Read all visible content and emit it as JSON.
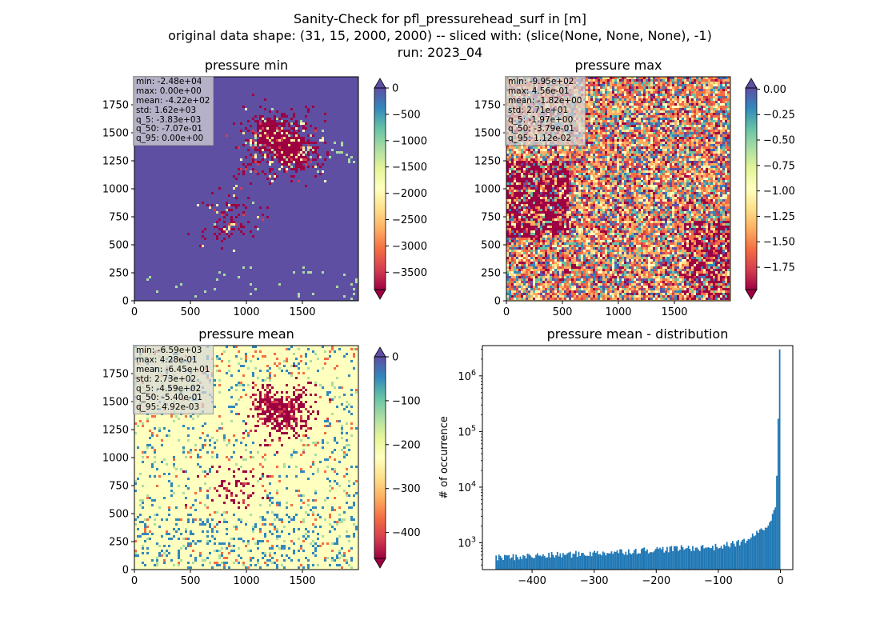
{
  "suptitle": {
    "line1": "Sanity-Check for pfl_pressurehead_surf in [m]",
    "line2": "original data shape: (31, 15, 2000, 2000) -- sliced with: (slice(None, None, None), -1)",
    "line3": "run: 2023_04"
  },
  "colors": {
    "spectral": [
      "#9e0142",
      "#d53e4f",
      "#f46d43",
      "#fdae61",
      "#fee08b",
      "#ffffbf",
      "#e6f598",
      "#abdda4",
      "#66c2a5",
      "#3288bd",
      "#5e4fa2"
    ],
    "hist_bar": "#1f77b4"
  },
  "panels": {
    "pmin": {
      "title": "pressure min",
      "stats": [
        "min: -2.48e+04",
        "max: 0.00e+00",
        "mean: -4.22e+02",
        "std: 1.62e+03",
        "q_5: -3.83e+03",
        "q_50: -7.07e-01",
        "q_95: 0.00e+00"
      ]
    },
    "pmax": {
      "title": "pressure max",
      "stats": [
        "min: -9.95e+02",
        "max: 4.56e-01",
        "mean: -1.82e+00",
        "std: 2.71e+01",
        "q_5: -1.97e+00",
        "q_50: -3.79e-01",
        "q_95: 1.12e-02"
      ]
    },
    "pmean": {
      "title": "pressure mean",
      "stats": [
        "min: -6.59e+03",
        "max: 4.28e-01",
        "mean: -6.45e+01",
        "std: 2.73e+02",
        "q_5: -4.59e+02",
        "q_50: -5.40e-01",
        "q_95: 4.92e-03"
      ]
    },
    "hist": {
      "title": "pressure mean - distribution"
    }
  },
  "chart_data": [
    {
      "type": "heatmap",
      "title": "pressure min",
      "xlim": [
        0,
        2000
      ],
      "ylim": [
        0,
        2000
      ],
      "x_ticks": [
        0,
        500,
        1000,
        1500
      ],
      "y_ticks": [
        0,
        250,
        500,
        750,
        1000,
        1250,
        1500,
        1750
      ],
      "colorbar": {
        "cmap": "Spectral",
        "range": [
          -3830,
          0
        ],
        "ticks": [
          0,
          -500,
          -1000,
          -1500,
          -2000,
          -2500,
          -3000,
          -3500
        ],
        "extend": "both"
      }
    },
    {
      "type": "heatmap",
      "title": "pressure max",
      "xlim": [
        0,
        2000
      ],
      "ylim": [
        0,
        2000
      ],
      "x_ticks": [
        0,
        500,
        1000,
        1500
      ],
      "y_ticks": [
        0,
        250,
        500,
        750,
        1000,
        1250,
        1500,
        1750
      ],
      "colorbar": {
        "cmap": "Spectral",
        "range": [
          -1.97,
          0.0112
        ],
        "ticks": [
          "0.00",
          "−0.25",
          "−0.50",
          "−0.75",
          "−1.00",
          "−1.25",
          "−1.50",
          "−1.75"
        ],
        "extend": "both"
      }
    },
    {
      "type": "heatmap",
      "title": "pressure mean",
      "xlim": [
        0,
        2000
      ],
      "ylim": [
        0,
        2000
      ],
      "x_ticks": [
        0,
        500,
        1000,
        1500
      ],
      "y_ticks": [
        0,
        250,
        500,
        750,
        1000,
        1250,
        1500,
        1750
      ],
      "colorbar": {
        "cmap": "Spectral",
        "range": [
          -459,
          0.00492
        ],
        "ticks": [
          0,
          -100,
          -200,
          -300,
          -400
        ],
        "extend": "both"
      }
    },
    {
      "type": "bar",
      "title": "pressure mean - distribution",
      "xlabel": "",
      "ylabel": "# of occurrence",
      "y_scale": "log",
      "xlim": [
        -480,
        20
      ],
      "ylim": [
        330,
        3500000
      ],
      "x_ticks": [
        -400,
        -300,
        -200,
        -100,
        0
      ],
      "y_ticks": [
        "10^3",
        "10^4",
        "10^5",
        "10^6"
      ],
      "bin_start": -459,
      "bin_end": 0.005,
      "bins": 200,
      "counts_anchor_x": [
        -459,
        -400,
        -300,
        -200,
        -100,
        -60,
        -40,
        -20,
        -10,
        -5,
        -3,
        -2,
        -1,
        -0.5,
        0
      ],
      "counts_anchor_y": [
        540,
        580,
        650,
        760,
        850,
        1050,
        1400,
        2100,
        3600,
        6000,
        16000,
        30000,
        170000,
        420000,
        3000000
      ]
    }
  ]
}
